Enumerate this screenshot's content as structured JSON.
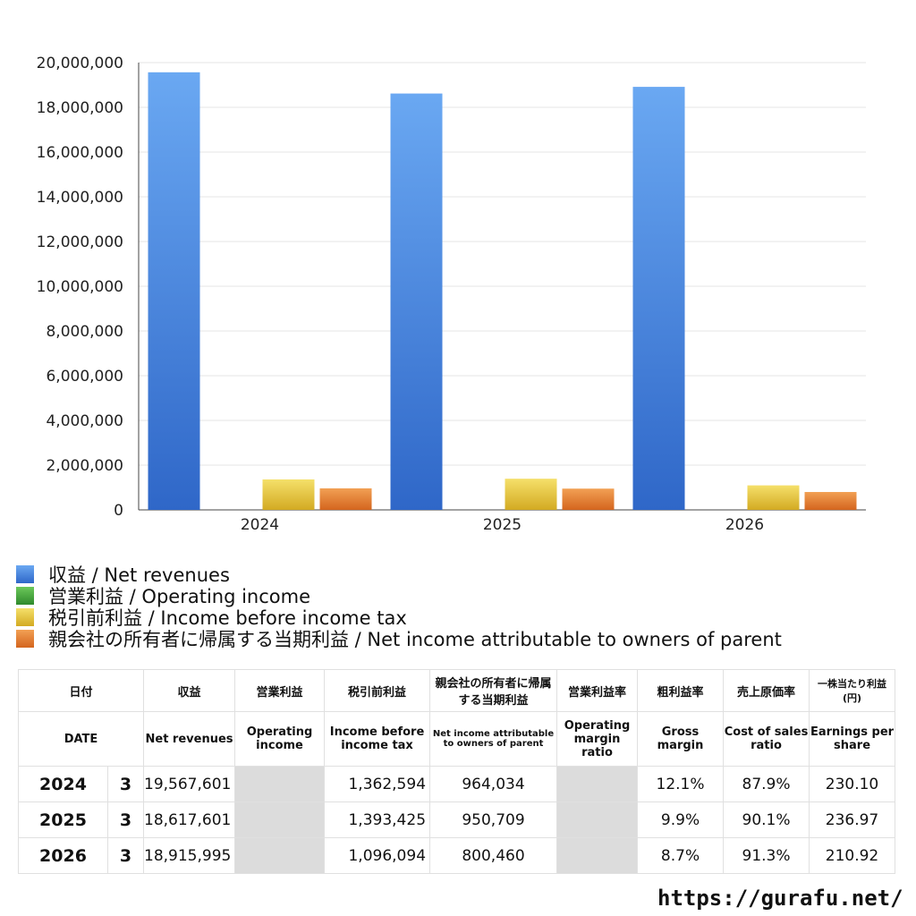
{
  "chart_data": {
    "type": "bar",
    "categories": [
      "2024",
      "2025",
      "2026"
    ],
    "series": [
      {
        "name": "収益 / Net revenues",
        "color": "#4a86e0",
        "values": [
          19567601,
          18617601,
          18915995
        ]
      },
      {
        "name": "営業利益 / Operating income",
        "color": "#4caf3f",
        "values": [
          null,
          null,
          null
        ]
      },
      {
        "name": "税引前利益 / Income before income tax",
        "color": "#e3c33a",
        "values": [
          1362594,
          1393425,
          1096094
        ]
      },
      {
        "name": "親会社の所有者に帰属する当期利益 / Net income attributable to owners of parent",
        "color": "#e07a2c",
        "values": [
          964034,
          950709,
          800460
        ]
      }
    ],
    "ylim": [
      0,
      20000000
    ],
    "yticks": [
      "0",
      "2,000,000",
      "4,000,000",
      "6,000,000",
      "8,000,000",
      "10,000,000",
      "12,000,000",
      "14,000,000",
      "16,000,000",
      "18,000,000",
      "20,000,000"
    ],
    "grid": true,
    "legend_position": "bottom"
  },
  "table": {
    "headers_jp": [
      "日付",
      "収益",
      "営業利益",
      "税引前利益",
      "親会社の所有者に帰属する当期利益",
      "営業利益率",
      "粗利益率",
      "売上原価率",
      "一株当たり利益 (円)"
    ],
    "headers_en": [
      "DATE",
      "Net revenues",
      "Operating income",
      "Income before income tax",
      "Net income attributable to owners of parent",
      "Operating margin ratio",
      "Gross margin",
      "Cost of sales ratio",
      "Earnings per share"
    ],
    "rows": [
      {
        "year": "2024",
        "month": "3",
        "revenue": "19,567,601",
        "operating": "",
        "pretax": "1,362,594",
        "net": "964,034",
        "op_margin": "",
        "gross": "12.1%",
        "cost": "87.9%",
        "eps": "230.10"
      },
      {
        "year": "2025",
        "month": "3",
        "revenue": "18,617,601",
        "operating": "",
        "pretax": "1,393,425",
        "net": "950,709",
        "op_margin": "",
        "gross": "9.9%",
        "cost": "90.1%",
        "eps": "236.97"
      },
      {
        "year": "2026",
        "month": "3",
        "revenue": "18,915,995",
        "operating": "",
        "pretax": "1,096,094",
        "net": "800,460",
        "op_margin": "",
        "gross": "8.7%",
        "cost": "91.3%",
        "eps": "210.92"
      }
    ]
  },
  "footer": "https://gurafu.net/"
}
